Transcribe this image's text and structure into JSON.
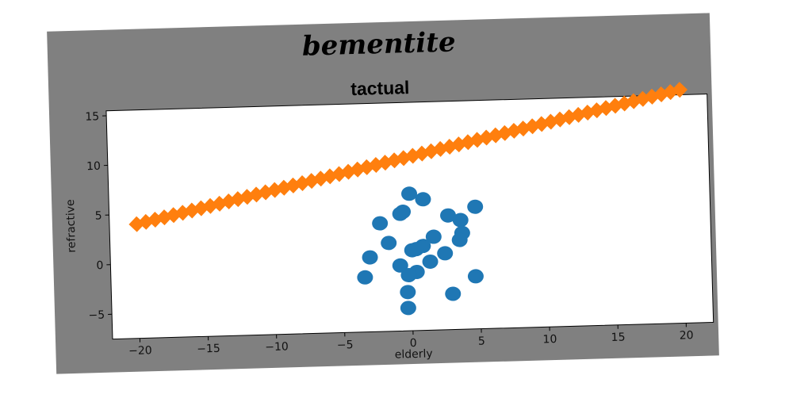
{
  "chart_data": {
    "type": "scatter",
    "title": "bementite",
    "subtitle": "tactual",
    "xlabel": "elderly",
    "ylabel": "refractive",
    "xlim": [
      -22,
      22
    ],
    "ylim": [
      -7.5,
      15.5
    ],
    "xticks": [
      -20,
      -15,
      -10,
      -5,
      0,
      5,
      10,
      15,
      20
    ],
    "yticks": [
      -5,
      0,
      5,
      10,
      15
    ],
    "grid": false,
    "series": [
      {
        "color": "#1f77b4",
        "marker": "circle",
        "points": [
          [
            0,
            6.3
          ],
          [
            -0.5,
            4.5
          ],
          [
            -0.7,
            4.3
          ],
          [
            1,
            5.7
          ],
          [
            4.8,
            4.8
          ],
          [
            2.8,
            4
          ],
          [
            3.7,
            3.5
          ],
          [
            3.8,
            2.2
          ],
          [
            3.6,
            1.5
          ],
          [
            -2.2,
            3.4
          ],
          [
            -1.6,
            1.4
          ],
          [
            1.7,
            1.9
          ],
          [
            0.9,
            1
          ],
          [
            0.1,
            0.6
          ],
          [
            0.4,
            0.7
          ],
          [
            2.5,
            0.2
          ],
          [
            -3,
            0
          ],
          [
            1.4,
            -0.6
          ],
          [
            -0.8,
            -0.9
          ],
          [
            0.4,
            -1.6
          ],
          [
            -0.2,
            -1.9
          ],
          [
            -3.4,
            -2
          ],
          [
            4.7,
            -2.2
          ],
          [
            -0.3,
            -3.6
          ],
          [
            3,
            -3.9
          ],
          [
            -0.3,
            -5.2
          ]
        ]
      },
      {
        "color": "#ff7f0e",
        "marker": "diamond",
        "x_start": -20,
        "x_end": 20,
        "n": 60,
        "slope": 0.3,
        "intercept": 10
      }
    ]
  }
}
